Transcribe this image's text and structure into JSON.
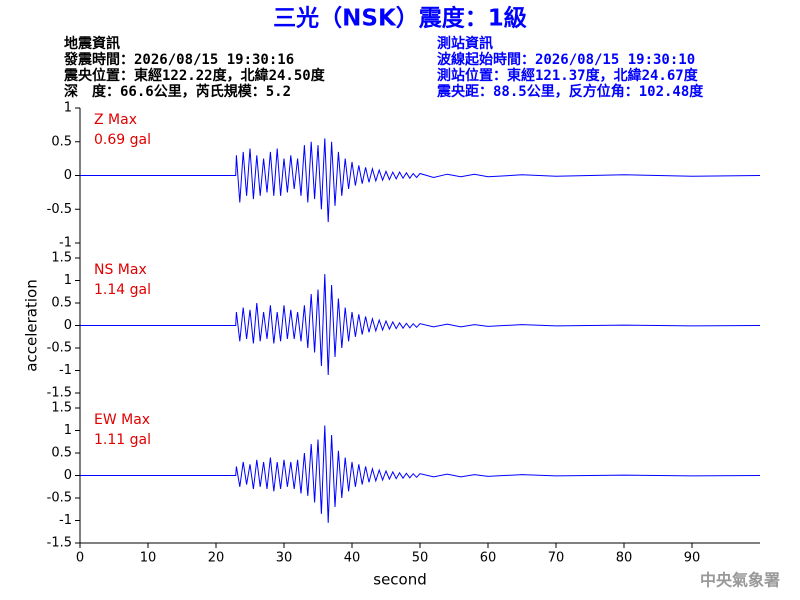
{
  "header": {
    "title": "三光（NSK）震度：1級",
    "left": [
      "地震資訊",
      "發震時間：2026/08/15 19:30:16",
      "震央位置：東經122.22度，北緯24.50度",
      "深　度：66.6公里，芮氏規模：5.2"
    ],
    "right": [
      "測站資訊",
      "波線起始時間：2026/08/15 19:30:10",
      "測站位置：東經121.37度，北緯24.67度",
      "震央距：88.5公里，反方位角：102.48度"
    ],
    "footer": "中央氣象署"
  },
  "chart_data": [
    {
      "type": "line",
      "max_label": "Z Max",
      "max_value": "0.69 gal",
      "color": "#0000ff",
      "xlim": [
        0,
        100
      ],
      "ylim": [
        -1,
        1
      ],
      "yticks": [
        -1,
        -0.5,
        0,
        0.5,
        1
      ],
      "x": [
        0,
        22.9,
        23,
        23.5,
        24,
        24.5,
        25,
        25.5,
        26,
        26.5,
        27,
        27.5,
        28,
        28.5,
        29,
        29.5,
        30,
        30.5,
        31,
        31.5,
        32,
        32.5,
        33,
        33.5,
        34,
        34.5,
        35,
        35.5,
        36,
        36.5,
        37,
        37.5,
        38,
        38.5,
        39,
        39.5,
        40,
        40.5,
        41,
        41.5,
        42,
        42.5,
        43,
        43.5,
        44,
        44.5,
        45,
        45.5,
        46,
        46.5,
        47,
        47.5,
        48,
        48.5,
        49,
        49.5,
        50,
        52,
        54,
        56,
        58,
        60,
        65,
        70,
        80,
        90,
        100
      ],
      "values": [
        0,
        0,
        0.3,
        -0.4,
        0.35,
        -0.3,
        0.4,
        -0.35,
        0.3,
        -0.3,
        0.25,
        -0.25,
        0.35,
        -0.3,
        0.4,
        -0.3,
        0.25,
        -0.25,
        0.3,
        -0.2,
        0.25,
        -0.3,
        0.45,
        -0.4,
        0.5,
        -0.35,
        0.45,
        -0.5,
        0.55,
        -0.69,
        0.5,
        -0.45,
        0.35,
        -0.3,
        0.25,
        -0.2,
        0.2,
        -0.15,
        0.15,
        -0.12,
        0.12,
        -0.1,
        0.1,
        -0.08,
        0.08,
        -0.07,
        0.06,
        -0.06,
        0.05,
        -0.05,
        0.05,
        -0.04,
        0.04,
        -0.04,
        0.03,
        -0.03,
        0.03,
        -0.03,
        0.02,
        -0.02,
        0.02,
        -0.02,
        0.01,
        -0.01,
        0.01,
        -0.01,
        0
      ]
    },
    {
      "type": "line",
      "max_label": "NS Max",
      "max_value": "1.14 gal",
      "color": "#0000ff",
      "ylabel": "acceleration",
      "xlim": [
        0,
        100
      ],
      "ylim": [
        -1.5,
        1.5
      ],
      "yticks": [
        -1.5,
        -1,
        -0.5,
        0,
        0.5,
        1,
        1.5
      ],
      "x": [
        0,
        22.9,
        23,
        23.5,
        24,
        24.5,
        25,
        25.5,
        26,
        26.5,
        27,
        27.5,
        28,
        28.5,
        29,
        29.5,
        30,
        30.5,
        31,
        31.5,
        32,
        32.5,
        33,
        33.5,
        34,
        34.5,
        35,
        35.5,
        36,
        36.5,
        37,
        37.5,
        38,
        38.5,
        39,
        39.5,
        40,
        40.5,
        41,
        41.5,
        42,
        42.5,
        43,
        43.5,
        44,
        44.5,
        45,
        45.5,
        46,
        46.5,
        47,
        47.5,
        48,
        48.5,
        49,
        49.5,
        50,
        52,
        54,
        56,
        58,
        60,
        65,
        70,
        80,
        90,
        100
      ],
      "values": [
        0,
        0,
        0.3,
        -0.35,
        0.4,
        -0.3,
        0.35,
        -0.4,
        0.5,
        -0.35,
        0.3,
        -0.3,
        0.45,
        -0.4,
        0.3,
        -0.35,
        0.45,
        -0.3,
        0.35,
        -0.3,
        0.3,
        -0.35,
        0.45,
        -0.5,
        0.7,
        -0.6,
        0.8,
        -0.9,
        1.14,
        -1.1,
        0.9,
        -0.7,
        0.6,
        -0.5,
        0.4,
        -0.35,
        0.3,
        -0.25,
        0.25,
        -0.2,
        0.2,
        -0.15,
        0.15,
        -0.12,
        0.12,
        -0.1,
        0.1,
        -0.08,
        0.08,
        -0.07,
        0.06,
        -0.06,
        0.05,
        -0.05,
        0.04,
        -0.04,
        0.04,
        -0.03,
        0.03,
        -0.03,
        0.02,
        -0.02,
        0.02,
        -0.01,
        0.01,
        -0.01,
        0
      ]
    },
    {
      "type": "line",
      "max_label": "EW Max",
      "max_value": "1.11 gal",
      "color": "#0000ff",
      "xlim": [
        0,
        100
      ],
      "ylim": [
        -1.5,
        1.5
      ],
      "yticks": [
        -1.5,
        -1,
        -0.5,
        0,
        0.5,
        1,
        1.5
      ],
      "xticks": [
        0,
        10,
        20,
        30,
        40,
        50,
        60,
        70,
        80,
        90
      ],
      "xlabel": "second",
      "x": [
        0,
        22.9,
        23,
        23.5,
        24,
        24.5,
        25,
        25.5,
        26,
        26.5,
        27,
        27.5,
        28,
        28.5,
        29,
        29.5,
        30,
        30.5,
        31,
        31.5,
        32,
        32.5,
        33,
        33.5,
        34,
        34.5,
        35,
        35.5,
        36,
        36.5,
        37,
        37.5,
        38,
        38.5,
        39,
        39.5,
        40,
        40.5,
        41,
        41.5,
        42,
        42.5,
        43,
        43.5,
        44,
        44.5,
        45,
        45.5,
        46,
        46.5,
        47,
        47.5,
        48,
        48.5,
        49,
        49.5,
        50,
        52,
        54,
        56,
        58,
        60,
        65,
        70,
        80,
        90,
        100
      ],
      "values": [
        0,
        0,
        0.2,
        -0.25,
        0.3,
        -0.2,
        0.25,
        -0.3,
        0.35,
        -0.25,
        0.3,
        -0.3,
        0.4,
        -0.35,
        0.3,
        -0.3,
        0.35,
        -0.25,
        0.3,
        -0.3,
        0.35,
        -0.4,
        0.5,
        -0.45,
        0.7,
        -0.6,
        0.8,
        -0.85,
        1.11,
        -1.05,
        0.9,
        -0.7,
        0.55,
        -0.5,
        0.4,
        -0.35,
        0.3,
        -0.25,
        0.25,
        -0.2,
        0.2,
        -0.15,
        0.15,
        -0.12,
        0.12,
        -0.1,
        0.1,
        -0.08,
        0.08,
        -0.07,
        0.06,
        -0.06,
        0.05,
        -0.05,
        0.04,
        -0.04,
        0.04,
        -0.03,
        0.03,
        -0.03,
        0.02,
        -0.02,
        0.02,
        -0.01,
        0.01,
        -0.01,
        0
      ]
    }
  ]
}
